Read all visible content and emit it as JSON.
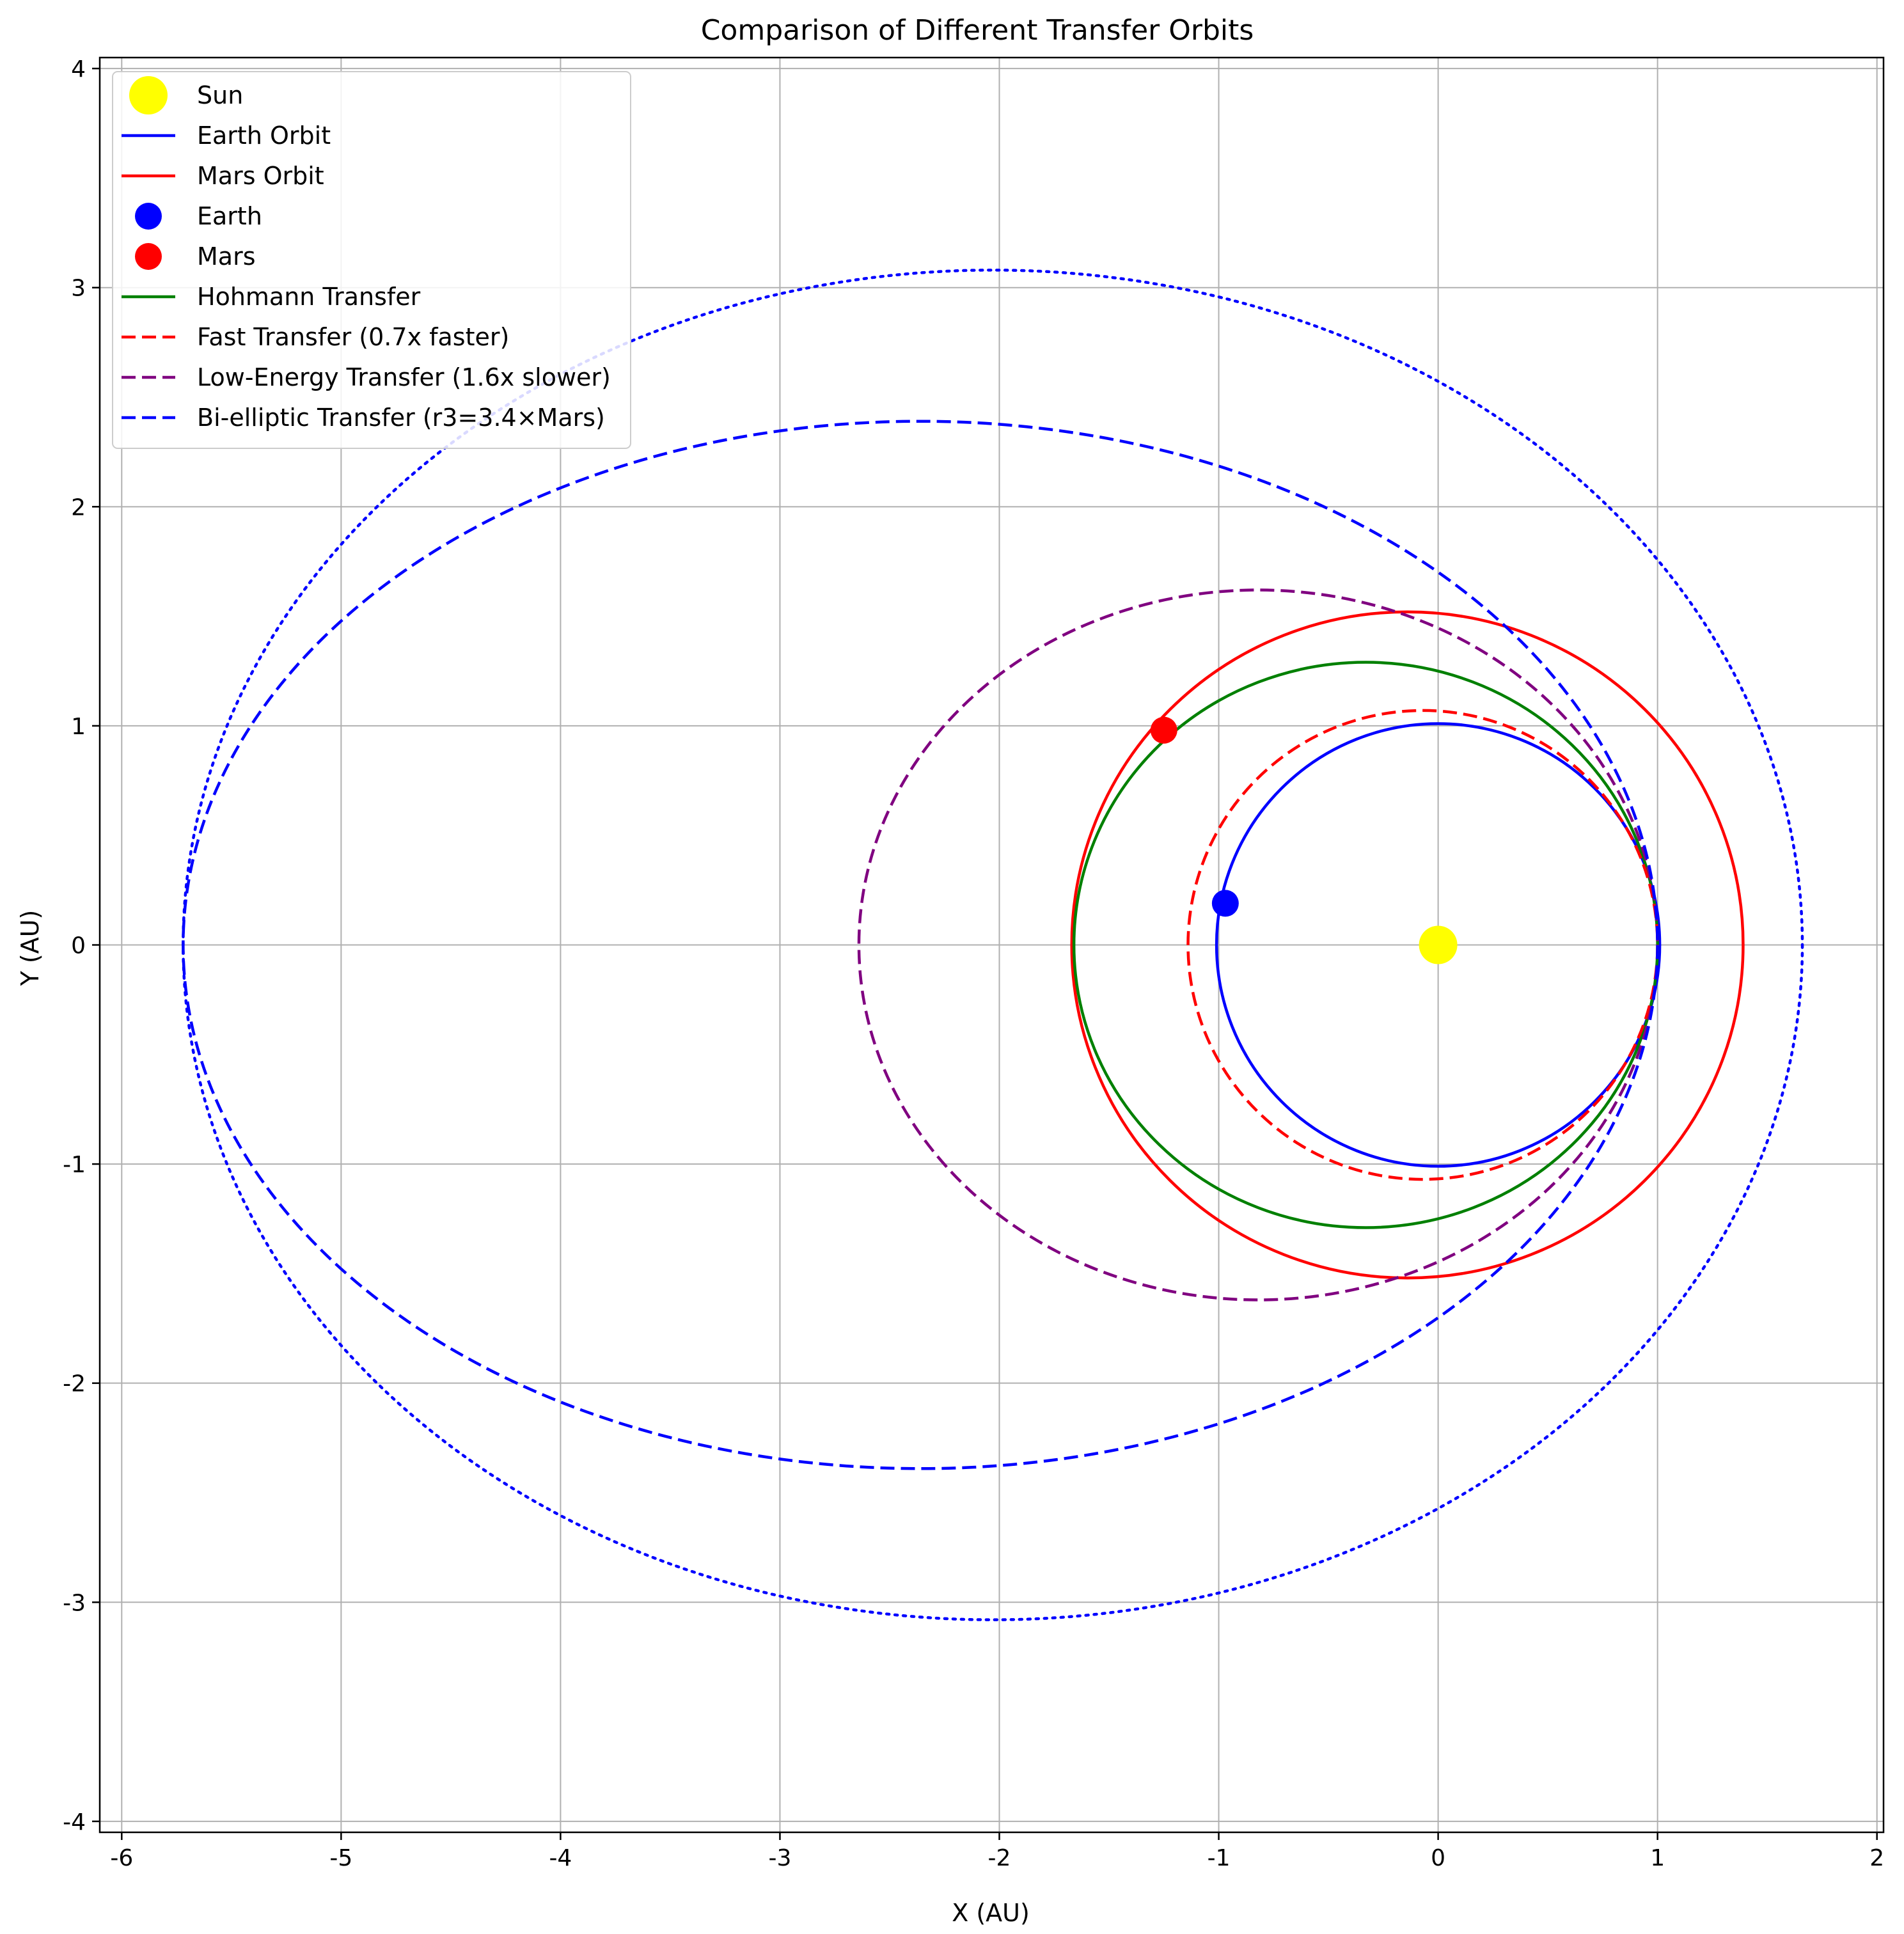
{
  "chart_data": {
    "type": "line",
    "title": "Comparison of Different Transfer Orbits",
    "xlabel": "X (AU)",
    "ylabel": "Y (AU)",
    "xlim": [
      -6.1,
      2.03
    ],
    "ylim": [
      -4.05,
      4.05
    ],
    "xticks": [
      -6,
      -5,
      -4,
      -3,
      -2,
      -1,
      0,
      1,
      2
    ],
    "yticks": [
      -4,
      -3,
      -2,
      -1,
      0,
      1,
      2,
      3,
      4
    ],
    "grid": true,
    "legend_position": "upper-left",
    "bodies": [
      {
        "name": "Sun",
        "x": 0,
        "y": 0,
        "color": "#ffff00"
      },
      {
        "name": "Earth",
        "x": -0.97,
        "y": 0.19,
        "color": "#0000ff"
      },
      {
        "name": "Mars",
        "x": -1.25,
        "y": 0.98,
        "color": "#ff0000"
      }
    ],
    "series": [
      {
        "name": "Earth Orbit",
        "kind": "ellipse",
        "cx": 0,
        "cy": 0,
        "a": 1.01,
        "b": 1.01,
        "color": "#0000ff",
        "style": "solid"
      },
      {
        "name": "Mars Orbit",
        "kind": "ellipse",
        "cx": -0.14,
        "cy": 0,
        "a": 1.53,
        "b": 1.52,
        "color": "#ff0000",
        "style": "solid"
      },
      {
        "name": "Hohmann Transfer",
        "kind": "ellipse",
        "cx": -0.33,
        "cy": 0,
        "a": 1.33,
        "b": 1.29,
        "color": "#008000",
        "style": "solid"
      },
      {
        "name": "Fast Transfer (0.7x faster)",
        "kind": "ellipse",
        "cx": -0.07,
        "cy": 0,
        "a": 1.07,
        "b": 1.07,
        "color": "#ff0000",
        "style": "dashed"
      },
      {
        "name": "Low-Energy Transfer (1.6x slower)",
        "kind": "ellipse",
        "cx": -0.82,
        "cy": 0,
        "a": 1.82,
        "b": 1.62,
        "color": "#800080",
        "style": "dashed"
      },
      {
        "name": "Bi-elliptic Transfer (r3=3.4×Mars)",
        "kind": "ellipse",
        "cx": -2.36,
        "cy": 0,
        "a": 3.36,
        "b": 2.39,
        "color": "#0000ff",
        "style": "dashed"
      },
      {
        "name": "",
        "kind": "ellipse",
        "cx": -2.03,
        "cy": 0,
        "a": 3.69,
        "b": 3.08,
        "color": "#0000ff",
        "style": "dotted"
      }
    ],
    "legend": [
      {
        "label": "Sun",
        "type": "marker",
        "color": "#ffff00",
        "size": "large"
      },
      {
        "label": "Earth Orbit",
        "type": "line",
        "color": "#0000ff",
        "style": "solid"
      },
      {
        "label": "Mars Orbit",
        "type": "line",
        "color": "#ff0000",
        "style": "solid"
      },
      {
        "label": "Earth",
        "type": "marker",
        "color": "#0000ff",
        "size": "medium"
      },
      {
        "label": "Mars",
        "type": "marker",
        "color": "#ff0000",
        "size": "medium"
      },
      {
        "label": "Hohmann Transfer",
        "type": "line",
        "color": "#008000",
        "style": "solid"
      },
      {
        "label": "Fast Transfer (0.7x faster)",
        "type": "line",
        "color": "#ff0000",
        "style": "dashed"
      },
      {
        "label": "Low-Energy Transfer (1.6x slower)",
        "type": "line",
        "color": "#800080",
        "style": "dashed"
      },
      {
        "label": "Bi-elliptic Transfer (r3=3.4×Mars)",
        "type": "line",
        "color": "#0000ff",
        "style": "dashed"
      }
    ]
  }
}
